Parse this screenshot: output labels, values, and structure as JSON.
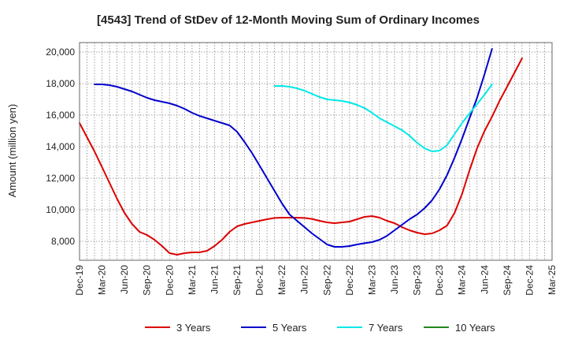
{
  "chart_data": {
    "type": "line",
    "title": "[4543]  Trend of StDev of 12-Month Moving Sum of Ordinary Incomes",
    "xlabel": "",
    "ylabel": "Amount (million yen)",
    "ylim": [
      6800,
      20600
    ],
    "yticks": [
      8000,
      10000,
      12000,
      14000,
      16000,
      18000,
      20000
    ],
    "ytick_labels": [
      "8,000",
      "10,000",
      "12,000",
      "14,000",
      "16,000",
      "18,000",
      "20,000"
    ],
    "xticks": [
      "Dec-19",
      "Mar-20",
      "Jun-20",
      "Sep-20",
      "Dec-20",
      "Mar-21",
      "Jun-21",
      "Sep-21",
      "Dec-21",
      "Mar-22",
      "Jun-22",
      "Sep-22",
      "Dec-22",
      "Mar-23",
      "Jun-23",
      "Sep-23",
      "Dec-23",
      "Mar-24",
      "Jun-24",
      "Sep-24",
      "Dec-24",
      "Mar-25"
    ],
    "grid": true,
    "legend_position": "bottom",
    "series": [
      {
        "name": "3 Years",
        "color": "#dd0000",
        "start": "Dec-19",
        "values": [
          15500,
          14600,
          13700,
          12700,
          11700,
          10700,
          9800,
          9100,
          8600,
          8400,
          8100,
          7700,
          7250,
          7150,
          7250,
          7300,
          7300,
          7400,
          7700,
          8100,
          8600,
          8950,
          9100,
          9200,
          9300,
          9400,
          9480,
          9500,
          9500,
          9500,
          9480,
          9420,
          9300,
          9200,
          9150,
          9200,
          9250,
          9400,
          9550,
          9600,
          9500,
          9300,
          9150,
          8900,
          8700,
          8550,
          8450,
          8500,
          8700,
          9000,
          9800,
          11000,
          12500,
          13900,
          15000,
          15900,
          16900,
          17800,
          18700,
          19600
        ]
      },
      {
        "name": "5 Years",
        "color": "#0000cc",
        "start": "Feb-20",
        "values": [
          17950,
          17950,
          17900,
          17800,
          17650,
          17500,
          17300,
          17100,
          16950,
          16850,
          16750,
          16600,
          16400,
          16150,
          15950,
          15800,
          15650,
          15500,
          15350,
          14950,
          14300,
          13600,
          12800,
          12000,
          11200,
          10400,
          9700,
          9300,
          8900,
          8500,
          8150,
          7800,
          7650,
          7650,
          7700,
          7800,
          7880,
          7950,
          8100,
          8350,
          8700,
          9050,
          9400,
          9700,
          10100,
          10600,
          11300,
          12200,
          13300,
          14500,
          15800,
          17100,
          18600,
          20200
        ]
      },
      {
        "name": "7 Years",
        "color": "#00e8e8",
        "start": "Feb-22",
        "values": [
          17850,
          17850,
          17800,
          17700,
          17550,
          17350,
          17150,
          17000,
          16950,
          16900,
          16800,
          16650,
          16450,
          16150,
          15800,
          15550,
          15300,
          15050,
          14700,
          14250,
          13900,
          13700,
          13750,
          14100,
          14800,
          15500,
          16100,
          16700,
          17300,
          17950
        ]
      },
      {
        "name": "10 Years",
        "color": "#228822",
        "start": "Dec-19",
        "values": []
      }
    ]
  }
}
